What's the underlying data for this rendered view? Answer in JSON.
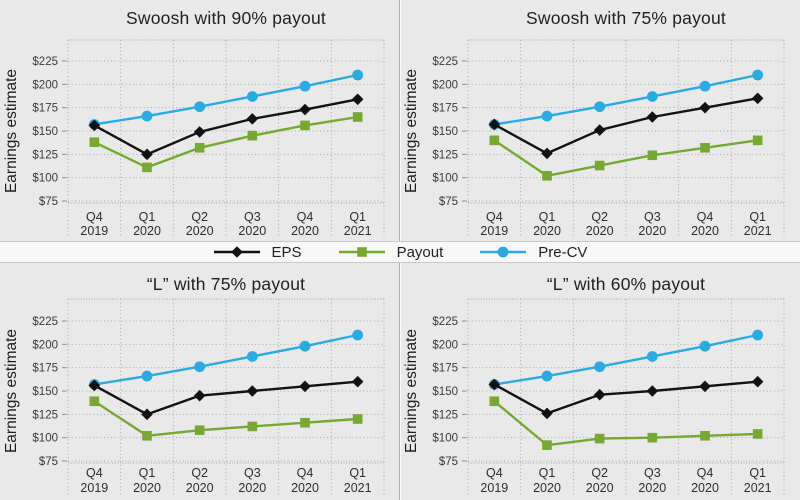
{
  "page": {
    "background": "#e9e9e9",
    "legend_band_background": "#f8f8f8"
  },
  "legend": {
    "items": [
      {
        "label": "EPS",
        "marker": "diamond",
        "color": "#121212"
      },
      {
        "label": "Payout",
        "marker": "square",
        "color": "#76a832"
      },
      {
        "label": "Pre-CV",
        "marker": "circle",
        "color": "#29abe2"
      }
    ]
  },
  "chart_data": [
    {
      "type": "line",
      "title": "Swoosh with 90% payout",
      "ylabel": "Earnings estimate",
      "ylim": [
        75,
        225
      ],
      "ytick_step": 25,
      "ytick_prefix": "$",
      "grid": "dotted",
      "legend_position": "shared-middle-band",
      "categories": [
        "Q4 2019",
        "Q1 2020",
        "Q2 2020",
        "Q3 2020",
        "Q4 2020",
        "Q1 2021"
      ],
      "series": [
        {
          "name": "EPS",
          "marker": "diamond",
          "color": "#121212",
          "values": [
            156,
            125,
            149,
            163,
            173,
            184
          ]
        },
        {
          "name": "Payout",
          "marker": "square",
          "color": "#76a832",
          "values": [
            138,
            111,
            132,
            145,
            156,
            165
          ]
        },
        {
          "name": "Pre-CV",
          "marker": "circle",
          "color": "#29abe2",
          "values": [
            157,
            166,
            176,
            187,
            198,
            210
          ]
        }
      ]
    },
    {
      "type": "line",
      "title": "Swoosh with 75% payout",
      "ylabel": "Earnings estimate",
      "ylim": [
        75,
        225
      ],
      "ytick_step": 25,
      "ytick_prefix": "$",
      "grid": "dotted",
      "legend_position": "shared-middle-band",
      "categories": [
        "Q4 2019",
        "Q1 2020",
        "Q2 2020",
        "Q3 2020",
        "Q4 2020",
        "Q1 2021"
      ],
      "series": [
        {
          "name": "EPS",
          "marker": "diamond",
          "color": "#121212",
          "values": [
            157,
            126,
            151,
            165,
            175,
            185
          ]
        },
        {
          "name": "Payout",
          "marker": "square",
          "color": "#76a832",
          "values": [
            140,
            102,
            113,
            124,
            132,
            140
          ]
        },
        {
          "name": "Pre-CV",
          "marker": "circle",
          "color": "#29abe2",
          "values": [
            157,
            166,
            176,
            187,
            198,
            210
          ]
        }
      ]
    },
    {
      "type": "line",
      "title": "“L” with 75% payout",
      "ylabel": "Earnings estimate",
      "ylim": [
        75,
        225
      ],
      "ytick_step": 25,
      "ytick_prefix": "$",
      "grid": "dotted",
      "legend_position": "shared-middle-band",
      "categories": [
        "Q4 2019",
        "Q1 2020",
        "Q2 2020",
        "Q3 2020",
        "Q4 2020",
        "Q1 2021"
      ],
      "series": [
        {
          "name": "EPS",
          "marker": "diamond",
          "color": "#121212",
          "values": [
            156,
            125,
            145,
            150,
            155,
            160
          ]
        },
        {
          "name": "Payout",
          "marker": "square",
          "color": "#76a832",
          "values": [
            139,
            102,
            108,
            112,
            116,
            120
          ]
        },
        {
          "name": "Pre-CV",
          "marker": "circle",
          "color": "#29abe2",
          "values": [
            157,
            166,
            176,
            187,
            198,
            210
          ]
        }
      ]
    },
    {
      "type": "line",
      "title": "“L” with 60% payout",
      "ylabel": "Earnings estimate",
      "ylim": [
        75,
        225
      ],
      "ytick_step": 25,
      "ytick_prefix": "$",
      "grid": "dotted",
      "legend_position": "shared-middle-band",
      "categories": [
        "Q4 2019",
        "Q1 2020",
        "Q2 2020",
        "Q3 2020",
        "Q4 2020",
        "Q1 2021"
      ],
      "series": [
        {
          "name": "EPS",
          "marker": "diamond",
          "color": "#121212",
          "values": [
            157,
            126,
            146,
            150,
            155,
            160
          ]
        },
        {
          "name": "Payout",
          "marker": "square",
          "color": "#76a832",
          "values": [
            139,
            92,
            99,
            100,
            102,
            104
          ]
        },
        {
          "name": "Pre-CV",
          "marker": "circle",
          "color": "#29abe2",
          "values": [
            157,
            166,
            176,
            187,
            198,
            210
          ]
        }
      ]
    }
  ]
}
